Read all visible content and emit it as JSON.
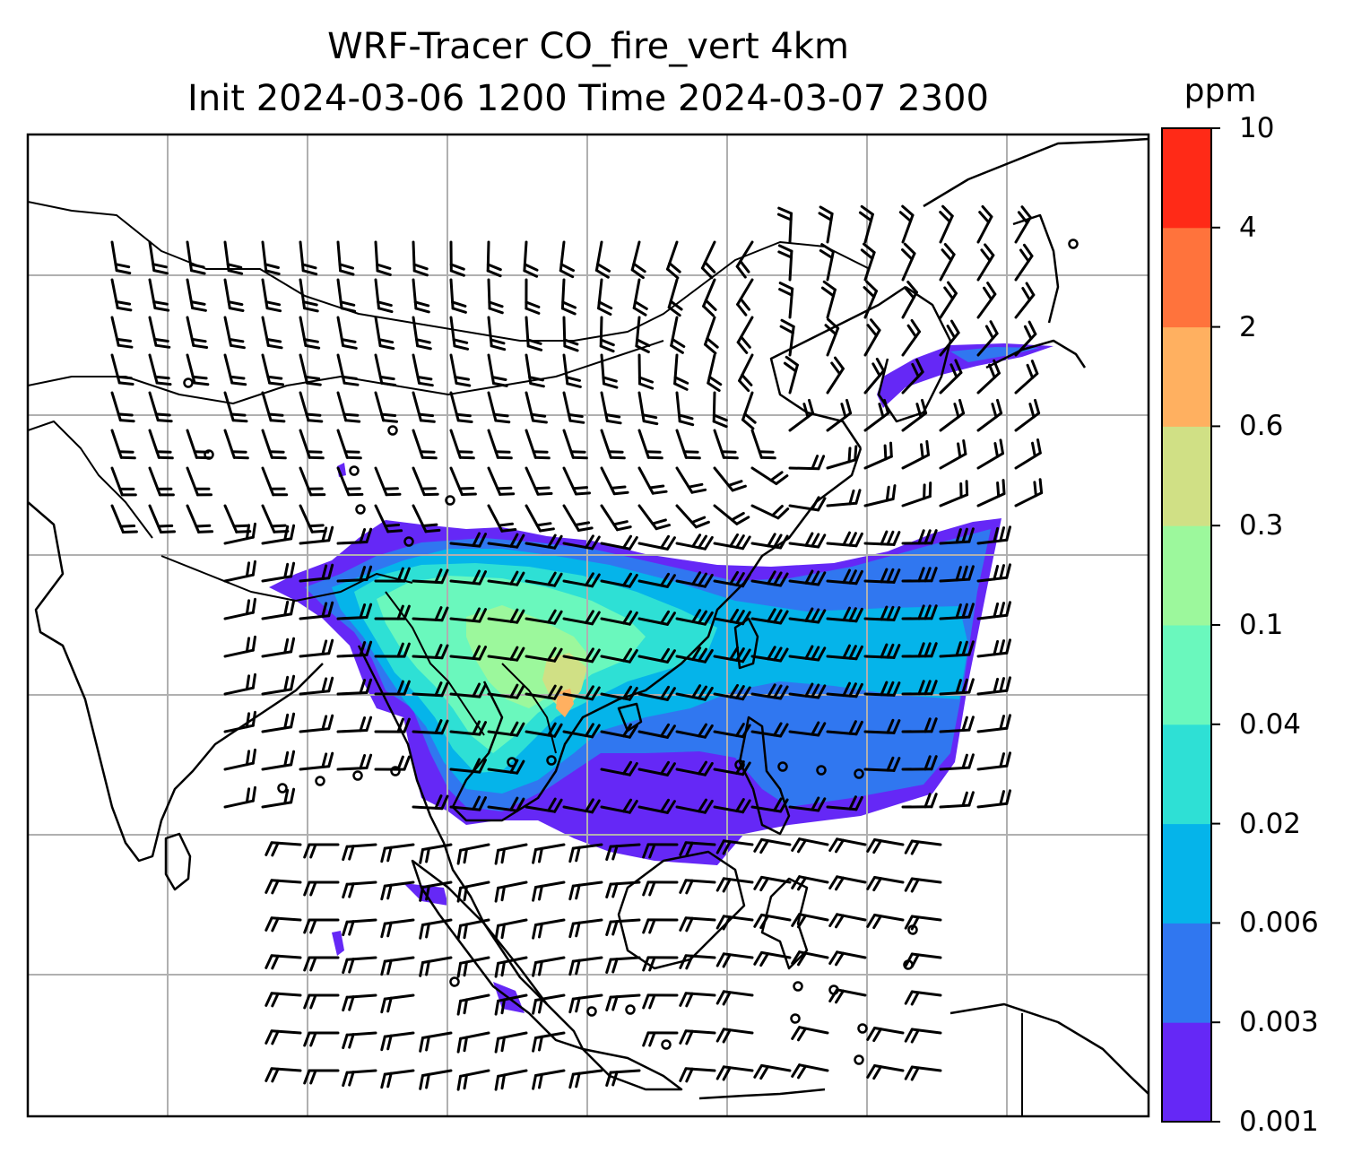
{
  "title": {
    "line1": "WRF-Tracer CO_fire_vert 4km",
    "line2": "Init 2024-03-06 1200 Time 2024-03-07 2300"
  },
  "colorbar": {
    "unit": "ppm",
    "ticks": [
      "0.001",
      "0.003",
      "0.006",
      "0.02",
      "0.04",
      "0.1",
      "0.3",
      "0.6",
      "2",
      "4",
      "10"
    ],
    "colors": [
      "#6528f6",
      "#3077f0",
      "#05b4ea",
      "#2ee0d5",
      "#6af8bd",
      "#9cf89c",
      "#d0e085",
      "#ffb060",
      "#ff733c",
      "#ff2a17"
    ]
  },
  "map": {
    "field": "CO_fire_vert",
    "grid_lines": true,
    "overlays": [
      "coastlines",
      "country-borders",
      "wind-barbs"
    ]
  }
}
